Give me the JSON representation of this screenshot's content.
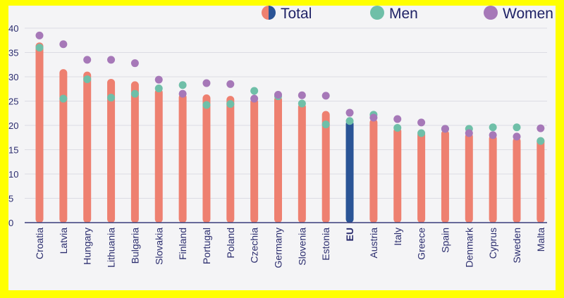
{
  "chart_data": {
    "type": "bar",
    "title": "",
    "xlabel": "",
    "ylabel": "",
    "ylim": [
      0,
      40
    ],
    "yticks": [
      0,
      5,
      10,
      15,
      20,
      25,
      30,
      35,
      40
    ],
    "grid": true,
    "legend_position": "top-right",
    "categories": [
      "Croatia",
      "Latvia",
      "Hungary",
      "Lithuania",
      "Bulgaria",
      "Slovakia",
      "Finland",
      "Portugal",
      "Poland",
      "Czechia",
      "Germany",
      "Slovenia",
      "Estonia",
      "EU",
      "Austria",
      "Italy",
      "Greece",
      "Spain",
      "Denmark",
      "Cyprus",
      "Sweden",
      "Malta"
    ],
    "highlight_category": "EU",
    "series": [
      {
        "name": "Total",
        "kind": "bar",
        "color": "#ee8070",
        "highlight_color": "#2a5496",
        "values": [
          37,
          31.5,
          31,
          29.5,
          29,
          27.5,
          26.5,
          26.3,
          26,
          25.5,
          26,
          24.5,
          22.9,
          21,
          21.3,
          19.5,
          18.8,
          19,
          18.4,
          18,
          17.5,
          17.5
        ]
      },
      {
        "name": "Men",
        "kind": "dot",
        "color": "#6fbfa8",
        "values": [
          36,
          25.5,
          29.5,
          25.7,
          26.5,
          27.6,
          28.3,
          24.2,
          24.4,
          27.1,
          26,
          24.5,
          20.2,
          20.9,
          22.2,
          19.5,
          18.4,
          19.3,
          19.3,
          19.6,
          19.6,
          16.8
        ]
      },
      {
        "name": "Women",
        "kind": "dot",
        "color": "#a678b8",
        "values": [
          38.5,
          36.7,
          33.5,
          33.5,
          32.8,
          29.4,
          26.5,
          28.7,
          28.5,
          25.5,
          26.3,
          26.2,
          26.1,
          22.6,
          21.6,
          21.3,
          20.6,
          19.3,
          18.4,
          18,
          17.7,
          19.4
        ]
      }
    ]
  }
}
